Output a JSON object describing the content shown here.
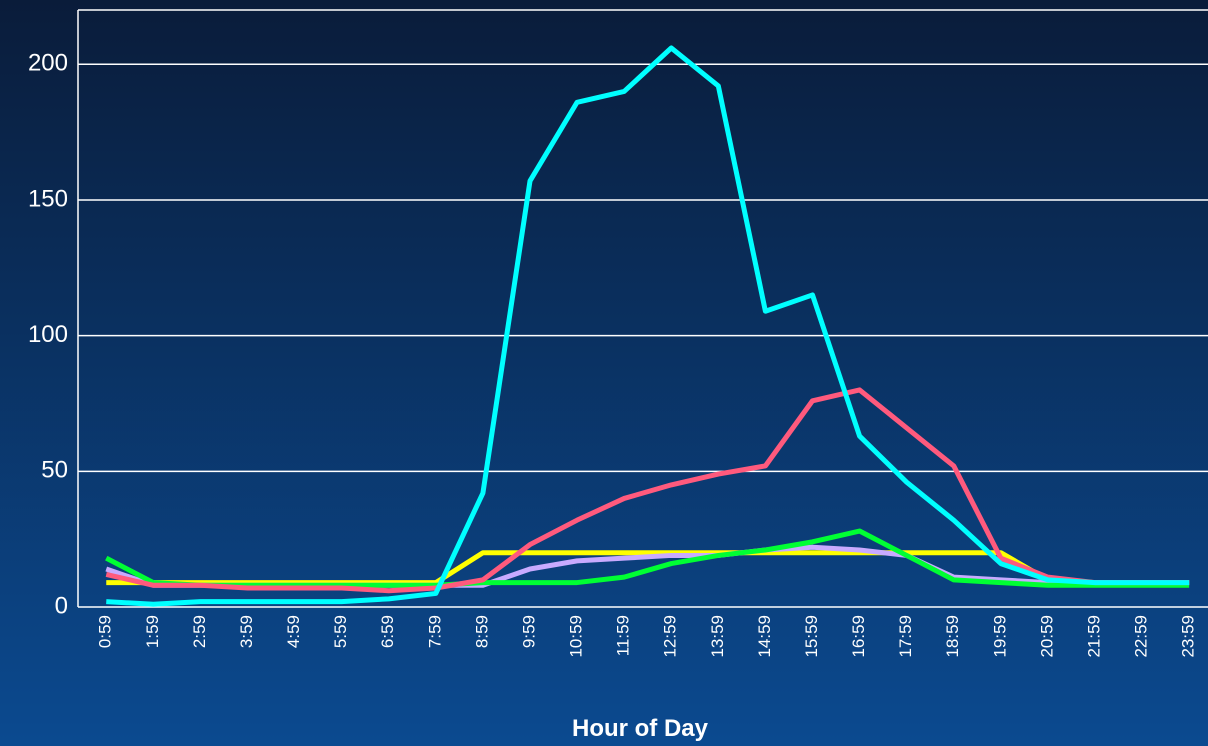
{
  "chart_data": {
    "type": "line",
    "x_label": "Hour of Day",
    "categories": [
      "0:59",
      "1:59",
      "2:59",
      "3:59",
      "4:59",
      "5:59",
      "6:59",
      "7:59",
      "8:59",
      "9:59",
      "10:59",
      "11:59",
      "12:59",
      "13:59",
      "14:59",
      "15:59",
      "16:59",
      "17:59",
      "18:59",
      "19:59",
      "20:59",
      "21:59",
      "22:59",
      "23:59"
    ],
    "series": [
      {
        "color": "#ffff00",
        "values": [
          9,
          9,
          9,
          9,
          9,
          9,
          9,
          9,
          20,
          20,
          20,
          20,
          20,
          20,
          20,
          20,
          20,
          20,
          20,
          20,
          10,
          9,
          9,
          9
        ]
      },
      {
        "color": "#c8aaff",
        "values": [
          14,
          8,
          8,
          8,
          8,
          8,
          8,
          8,
          8,
          14,
          17,
          18,
          19,
          19,
          21,
          22,
          21,
          19,
          11,
          10,
          9,
          9,
          9,
          9
        ]
      },
      {
        "color": "#00ff33",
        "values": [
          18,
          9,
          8,
          8,
          8,
          8,
          8,
          8,
          9,
          9,
          9,
          11,
          16,
          19,
          21,
          24,
          28,
          19,
          10,
          9,
          8,
          8,
          8,
          8
        ]
      },
      {
        "color": "#ff5a7d",
        "values": [
          12,
          8,
          8,
          7,
          7,
          7,
          6,
          7,
          10,
          23,
          32,
          40,
          45,
          49,
          52,
          76,
          80,
          66,
          52,
          18,
          11,
          9,
          9,
          9
        ]
      },
      {
        "color": "#00ffff",
        "values": [
          2,
          1,
          2,
          2,
          2,
          2,
          3,
          5,
          42,
          157,
          186,
          190,
          206,
          192,
          109,
          115,
          63,
          46,
          32,
          16,
          10,
          9,
          9,
          9
        ]
      }
    ],
    "ylim": [
      0,
      220
    ],
    "yticks": [
      0,
      50,
      100,
      150,
      200
    ],
    "grid": true
  }
}
